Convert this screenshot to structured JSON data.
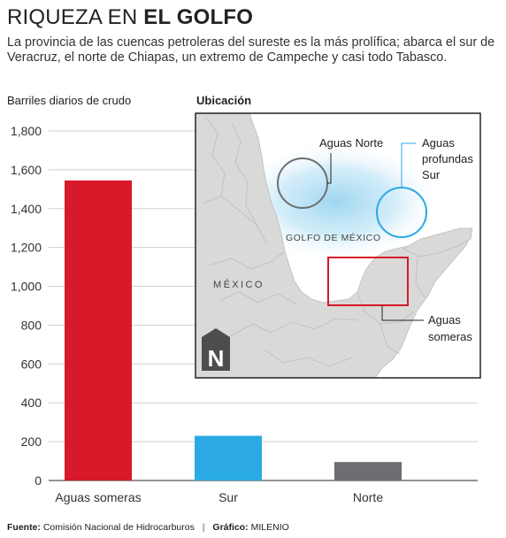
{
  "header": {
    "title_light": "RIQUEZA EN ",
    "title_bold": "EL GOLFO",
    "subtitle": "La provincia de las cuencas petroleras del sureste es la más prolífica; abarca el sur de Veracruz, el norte de Chiapas, un extremo de Campeche y casi todo Tabasco."
  },
  "chart_data": {
    "type": "bar",
    "ylabel": "Barriles diarios de crudo",
    "categories": [
      "Aguas someras",
      "Sur",
      "Norte"
    ],
    "values": [
      1545,
      230,
      95
    ],
    "colors": [
      "#d7192a",
      "#2aa9e3",
      "#6d6e71"
    ],
    "ylim": [
      0,
      1800
    ],
    "yticks": [
      "0",
      "200",
      "400",
      "600",
      "800",
      "1,000",
      "1,200",
      "1,400",
      "1,600",
      "1,800"
    ],
    "grid": true
  },
  "map": {
    "title": "Ubicación",
    "gulf_label": "GOLFO DE MÉXICO",
    "country_label": "MÉXICO",
    "north_label": "N",
    "callouts": {
      "norte": "Aguas Norte",
      "profundas_1": "Aguas",
      "profundas_2": "profundas",
      "profundas_3": "Sur",
      "someras_1": "Aguas",
      "someras_2": "someras"
    },
    "colors": {
      "land": "#d9d9d8",
      "sea": "#ffffff",
      "glow": "#9fd6f0",
      "norte_circle": "#6d6e71",
      "sur_circle": "#2aa9e3",
      "someras_box": "#d7192a"
    }
  },
  "footer": {
    "source_label": "Fuente:",
    "source": "Comisión Nacional de Hidrocarburos",
    "separator": "|",
    "credit_label": "Gráfico:",
    "credit": "MILENIO"
  }
}
